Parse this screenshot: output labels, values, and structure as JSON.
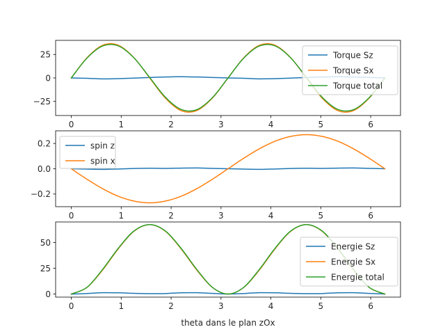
{
  "chart_data": [
    {
      "type": "line",
      "xlim": [
        -0.3142,
        6.5973
      ],
      "ylim": [
        -40,
        40
      ],
      "xticks": [
        0,
        1,
        2,
        3,
        4,
        5,
        6
      ],
      "yticks": [
        -25,
        0,
        25
      ],
      "ytick_labels": [
        "−25",
        "0",
        "25"
      ],
      "grid": false,
      "legend_position": "upper-right",
      "x": [
        0,
        0.3142,
        0.6283,
        0.9425,
        1.2566,
        1.5708,
        1.885,
        2.1991,
        2.5133,
        2.8274,
        3.1416,
        3.4558,
        3.7699,
        4.0841,
        4.3982,
        4.7124,
        5.0265,
        5.3407,
        5.6549,
        5.969,
        6.2832
      ],
      "series": [
        {
          "name": "Torque Sz",
          "color": "#1f77b4",
          "values": [
            0,
            -0.4,
            -1.0,
            -0.7,
            -0.2,
            0.5,
            1.0,
            1.3,
            1.0,
            0.5,
            0,
            -0.4,
            -1.0,
            -0.7,
            -0.2,
            0.5,
            1.0,
            1.3,
            1.0,
            0.5,
            0
          ]
        },
        {
          "name": "Torque Sx",
          "color": "#ff7f0e",
          "values": [
            0,
            21.5,
            34.8,
            34.8,
            21.5,
            0,
            -21.5,
            -34.8,
            -34.8,
            -21.5,
            0,
            21.5,
            34.8,
            34.8,
            21.5,
            0,
            -21.5,
            -34.8,
            -34.8,
            -21.5,
            0
          ]
        },
        {
          "name": "Torque total",
          "color": "#2ca02c",
          "values": [
            0,
            21.1,
            34.0,
            34.1,
            21.3,
            0.5,
            -20.5,
            -33.5,
            -33.8,
            -21.0,
            0,
            21.1,
            34.0,
            34.1,
            21.3,
            0.5,
            -20.5,
            -33.5,
            -33.8,
            -21.0,
            0
          ]
        }
      ]
    },
    {
      "type": "line",
      "xlim": [
        -0.3142,
        6.5973
      ],
      "ylim": [
        -0.3,
        0.3
      ],
      "xticks": [
        0,
        1,
        2,
        3,
        4,
        5,
        6
      ],
      "yticks": [
        -0.2,
        0,
        0.2
      ],
      "ytick_labels": [
        "−0.2",
        "0.0",
        "0.2"
      ],
      "grid": false,
      "legend_position": "upper-left",
      "x": [
        0,
        0.3142,
        0.6283,
        0.9425,
        1.2566,
        1.5708,
        1.885,
        2.1991,
        2.5133,
        2.8274,
        3.1416,
        3.4558,
        3.7699,
        4.0841,
        4.3982,
        4.7124,
        5.0265,
        5.3407,
        5.6549,
        5.969,
        6.2832
      ],
      "series": [
        {
          "name": "spin z",
          "color": "#1f77b4",
          "values": [
            0,
            -0.003,
            -0.005,
            -0.002,
            0.002,
            0.004,
            0.003,
            0.005,
            0.006,
            0.003,
            0,
            -0.003,
            -0.005,
            -0.002,
            0.002,
            0.004,
            0.003,
            0.005,
            0.006,
            0.003,
            0
          ]
        },
        {
          "name": "spin x",
          "color": "#ff7f0e",
          "values": [
            0,
            -0.083,
            -0.158,
            -0.218,
            -0.256,
            -0.27,
            -0.256,
            -0.218,
            -0.158,
            -0.083,
            0,
            0.083,
            0.158,
            0.218,
            0.256,
            0.27,
            0.256,
            0.218,
            0.158,
            0.083,
            0
          ]
        }
      ]
    },
    {
      "type": "line",
      "xlim": [
        -0.3142,
        6.5973
      ],
      "ylim": [
        -3,
        70
      ],
      "xticks": [
        0,
        1,
        2,
        3,
        4,
        5,
        6
      ],
      "yticks": [
        0,
        25,
        50
      ],
      "ytick_labels": [
        "0",
        "25",
        "50"
      ],
      "grid": false,
      "legend_position": "right",
      "xlabel": "theta dans le plan zOx",
      "x": [
        0,
        0.3142,
        0.6283,
        0.9425,
        1.2566,
        1.5708,
        1.885,
        2.1991,
        2.5133,
        2.8274,
        3.1416,
        3.4558,
        3.7699,
        4.0841,
        4.3982,
        4.7124,
        5.0265,
        5.3407,
        5.6549,
        5.969,
        6.2832
      ],
      "series": [
        {
          "name": "Energie Sz",
          "color": "#1f77b4",
          "values": [
            0,
            0.5,
            1.3,
            1.2,
            0.7,
            0.4,
            0.5,
            1.2,
            1.3,
            0.6,
            0,
            0.5,
            1.3,
            1.2,
            0.7,
            0.4,
            0.5,
            1.2,
            1.3,
            0.6,
            0
          ]
        },
        {
          "name": "Energie Sx",
          "color": "#ff7f0e",
          "values": [
            0,
            6.4,
            23.4,
            44.0,
            61.0,
            67.5,
            61.0,
            44.0,
            23.4,
            6.4,
            0,
            6.4,
            23.4,
            44.0,
            61.0,
            67.5,
            61.0,
            44.0,
            23.4,
            6.4,
            0
          ]
        },
        {
          "name": "Energie total",
          "color": "#2ca02c",
          "values": [
            0,
            6.5,
            24.0,
            44.5,
            61.3,
            67.5,
            61.3,
            44.5,
            24.0,
            6.5,
            0,
            6.5,
            24.0,
            44.5,
            61.3,
            67.5,
            61.3,
            44.5,
            24.0,
            6.5,
            0
          ]
        }
      ]
    }
  ]
}
